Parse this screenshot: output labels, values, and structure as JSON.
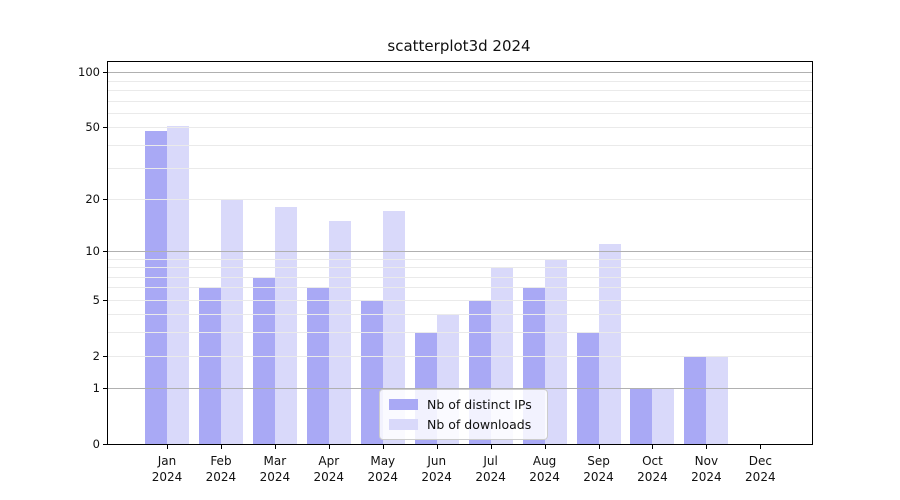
{
  "title": "scatterplot3d 2024",
  "colors": {
    "distinct_ips_bar": "#a9a9f5",
    "downloads_bar": "#d9d9fa",
    "grid_major": "#b0b0b0",
    "grid_minor": "#eaeaea",
    "spine": "#000000"
  },
  "legend": {
    "items": [
      "Nb of distinct IPs",
      "Nb of downloads"
    ]
  },
  "chart_data": {
    "type": "bar",
    "title": "scatterplot3d 2024",
    "categories": [
      "Jan 2024",
      "Feb 2024",
      "Mar 2024",
      "Apr 2024",
      "May 2024",
      "Jun 2024",
      "Jul 2024",
      "Aug 2024",
      "Sep 2024",
      "Oct 2024",
      "Nov 2024",
      "Dec 2024"
    ],
    "category_line1": [
      "Jan",
      "Feb",
      "Mar",
      "Apr",
      "May",
      "Jun",
      "Jul",
      "Aug",
      "Sep",
      "Oct",
      "Nov",
      "Dec"
    ],
    "category_line2": [
      "2024",
      "2024",
      "2024",
      "2024",
      "2024",
      "2024",
      "2024",
      "2024",
      "2024",
      "2024",
      "2024",
      "2024"
    ],
    "series": [
      {
        "name": "Nb of distinct IPs",
        "color": "#a9a9f5",
        "values": [
          48,
          6,
          7,
          6,
          5,
          3,
          5,
          6,
          3,
          1,
          2,
          0
        ]
      },
      {
        "name": "Nb of downloads",
        "color": "#d9d9fa",
        "values": [
          51,
          20,
          18,
          15,
          17,
          4,
          8,
          9,
          11,
          1,
          2,
          0
        ]
      }
    ],
    "xlabel": "",
    "ylabel": "",
    "yscale": "log1p",
    "y_tick_values": [
      0,
      1,
      2,
      5,
      10,
      20,
      50,
      100
    ],
    "y_tick_labels": [
      "0",
      "1",
      "2",
      "5",
      "10",
      "20",
      "50",
      "100"
    ],
    "y_grid_major_values": [
      1,
      10,
      100
    ],
    "y_grid_minor_values": [
      2,
      3,
      4,
      5,
      6,
      7,
      8,
      9,
      20,
      30,
      40,
      50,
      60,
      70,
      80,
      90
    ],
    "ylim": [
      0,
      114
    ],
    "grid": "horizontal major+minor, drawn above bars",
    "legend_position": "lower center"
  }
}
